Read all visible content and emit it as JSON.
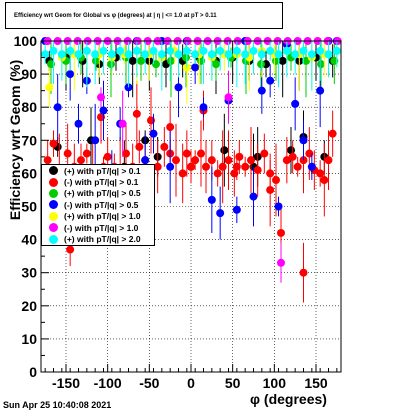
{
  "chart_data": {
    "type": "scatter",
    "title": "Efficiency wrt Geom for Global vs φ (degrees) at | η | <= 1.0 at pT > 0.11",
    "xlabel": "φ (degrees)",
    "ylabel": "Efficiency wrt Geom (%)",
    "xlim": [
      -180,
      180
    ],
    "ylim": [
      0,
      100
    ],
    "xticks": [
      "-150",
      "-100",
      "-50",
      "0",
      "50",
      "100",
      "150"
    ],
    "yticks": [
      "0",
      "10",
      "20",
      "30",
      "40",
      "50",
      "60",
      "70",
      "80",
      "90",
      "100"
    ],
    "grid": true,
    "legend_position": "left-center",
    "series": [
      {
        "name": "(+) with pT/|q| > 0.1",
        "color": "#000000",
        "x": [
          -170,
          -150,
          -130,
          -110,
          -90,
          -70,
          -50,
          -30,
          -10,
          10,
          30,
          50,
          70,
          90,
          110,
          130,
          150,
          170,
          -160,
          -120,
          -80,
          -40,
          0,
          40,
          80,
          120,
          160,
          -55,
          75,
          135
        ],
        "y": [
          94,
          95,
          94,
          93,
          95,
          94,
          94,
          93,
          94,
          95,
          94,
          95,
          94,
          93,
          94,
          94,
          95,
          94,
          68,
          70,
          62,
          65,
          62,
          67,
          65,
          67,
          65,
          70,
          62,
          71
        ]
      },
      {
        "name": "(-) with pT/|q| > 0.1",
        "color": "#ff0000",
        "x": [
          -172,
          -165,
          -158,
          -148,
          -140,
          -132,
          -125,
          -118,
          -108,
          -100,
          -92,
          -85,
          -78,
          -70,
          -62,
          -55,
          -48,
          -40,
          -32,
          -25,
          -18,
          -10,
          -5,
          0,
          5,
          12,
          18,
          25,
          32,
          38,
          45,
          52,
          58,
          65,
          72,
          80,
          88,
          95,
          102,
          108,
          115,
          122,
          128,
          135,
          142,
          148,
          155,
          160,
          165,
          170,
          -145,
          -105,
          -65,
          -25,
          15,
          55,
          95,
          135
        ],
        "y": [
          64,
          69,
          61,
          66,
          62,
          64,
          66,
          60,
          77,
          65,
          62,
          60,
          66,
          62,
          68,
          64,
          76,
          62,
          68,
          66,
          64,
          60,
          66,
          62,
          64,
          66,
          62,
          64,
          60,
          62,
          64,
          60,
          65,
          62,
          64,
          61,
          66,
          60,
          58,
          42,
          64,
          65,
          62,
          64,
          66,
          61,
          60,
          58,
          64,
          72,
          37,
          62,
          78,
          74,
          79,
          62,
          55,
          30
        ]
      },
      {
        "name": "(+) with pT/|q| > 0.5",
        "color": "#00cc00",
        "x": [
          -168,
          -150,
          -132,
          -114,
          -96,
          -78,
          -60,
          -42,
          -24,
          -6,
          12,
          30,
          48,
          66,
          84,
          102,
          120,
          138,
          156,
          172
        ],
        "y": [
          93,
          94,
          95,
          94,
          93,
          95,
          94,
          93,
          94,
          95,
          94,
          93,
          95,
          94,
          93,
          94,
          95,
          94,
          93,
          94
        ]
      },
      {
        "name": "(-) with pT/|q| > 0.5",
        "color": "#0000ff",
        "x": [
          -175,
          -160,
          -145,
          -135,
          -125,
          -115,
          -105,
          -95,
          -85,
          -75,
          -65,
          -55,
          -45,
          -35,
          -25,
          -15,
          -5,
          5,
          15,
          25,
          35,
          45,
          55,
          65,
          75,
          85,
          95,
          105,
          115,
          125,
          135,
          145,
          155,
          165,
          175
        ],
        "y": [
          100,
          80,
          90,
          75,
          88,
          70,
          79,
          60,
          75,
          86,
          100,
          64,
          72,
          100,
          62,
          86,
          100,
          92,
          80,
          52,
          48,
          82,
          49,
          100,
          53,
          85,
          88,
          50,
          99,
          81,
          70,
          62,
          85,
          100,
          100
        ]
      },
      {
        "name": "(+) with pT/|q| > 1.0",
        "color": "#ffff00",
        "x": [
          -170,
          -155,
          -140,
          -125,
          -110,
          -95,
          -80,
          -65,
          -50,
          -35,
          -20,
          -5,
          10,
          25,
          40,
          55,
          70,
          85,
          100,
          115,
          130,
          145,
          160,
          175
        ],
        "y": [
          86,
          95,
          96,
          97,
          96,
          95,
          96,
          97,
          96,
          95,
          97,
          92,
          96,
          95,
          96,
          96,
          95,
          97,
          96,
          97,
          96,
          95,
          96,
          97
        ]
      },
      {
        "name": "(-) with pT/|q| > 1.0",
        "color": "#ff00ff",
        "x": [
          -172,
          -160,
          -148,
          -136,
          -124,
          -112,
          -100,
          -88,
          -76,
          -64,
          -52,
          -40,
          -28,
          -16,
          -4,
          8,
          20,
          32,
          44,
          56,
          68,
          80,
          92,
          104,
          116,
          128,
          140,
          152,
          164,
          176,
          -108,
          -82,
          45,
          108
        ],
        "y": [
          100,
          100,
          100,
          100,
          100,
          100,
          100,
          100,
          100,
          100,
          100,
          100,
          100,
          100,
          100,
          100,
          100,
          100,
          100,
          100,
          100,
          100,
          100,
          100,
          100,
          100,
          100,
          100,
          100,
          100,
          83,
          75,
          83,
          33
        ]
      },
      {
        "name": "(+) with pT/|q| > 2.0",
        "color": "#00ffff",
        "x": [
          -175,
          -165,
          -155,
          -145,
          -135,
          -125,
          -115,
          -105,
          -95,
          -85,
          -75,
          -65,
          -55,
          -45,
          -35,
          -25,
          -15,
          -5,
          5,
          15,
          25,
          35,
          45,
          55,
          65,
          75,
          85,
          95,
          105,
          115,
          125,
          135,
          145,
          155,
          165,
          175
        ],
        "y": [
          96,
          97,
          96,
          97,
          96,
          97,
          96,
          97,
          96,
          97,
          96,
          97,
          96,
          97,
          96,
          97,
          96,
          97,
          96,
          97,
          96,
          97,
          96,
          97,
          96,
          97,
          96,
          97,
          96,
          97,
          96,
          97,
          96,
          97,
          96,
          97
        ]
      }
    ],
    "footer": "Sun Apr 25 10:40:08 2021"
  }
}
